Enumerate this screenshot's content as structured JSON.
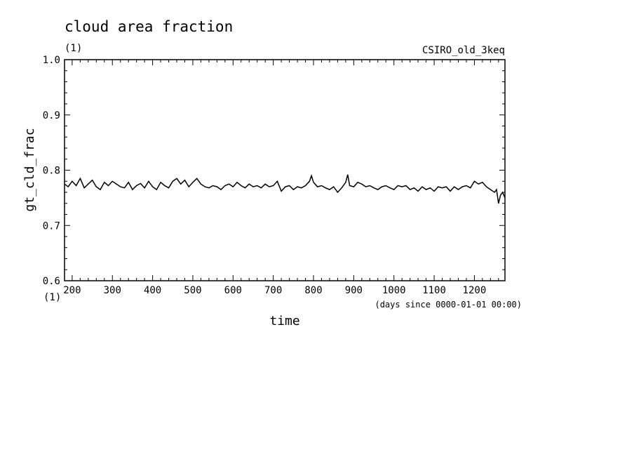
{
  "chart_data": {
    "type": "line",
    "title": "cloud area fraction",
    "title_units": "(1)",
    "dataset_label": "CSIRO_old_3keq",
    "xlabel": "time",
    "xunits_note": "(days since 0000-01-01 00:00)",
    "ylabel": "gt_cld_frac",
    "yunits": "(1)",
    "xlim": [
      181,
      1276
    ],
    "ylim": [
      0.6,
      1.0
    ],
    "x_ticks": [
      200,
      300,
      400,
      500,
      600,
      700,
      800,
      900,
      1000,
      1100,
      1200
    ],
    "y_ticks": [
      0.6,
      0.7,
      0.8,
      0.9,
      1.0
    ],
    "y_tick_labels": [
      "0.6",
      "0.7",
      "0.8",
      "0.9",
      "1.0"
    ],
    "grid": false,
    "line_color": "#000000",
    "series": [
      {
        "x": [
          181,
          190,
          200,
          210,
          220,
          230,
          240,
          250,
          260,
          270,
          280,
          290,
          300,
          310,
          320,
          330,
          340,
          350,
          360,
          370,
          380,
          390,
          400,
          410,
          420,
          430,
          440,
          450,
          460,
          470,
          480,
          490,
          500,
          510,
          520,
          530,
          540,
          550,
          560,
          570,
          580,
          590,
          600,
          610,
          620,
          630,
          640,
          650,
          660,
          670,
          680,
          690,
          700,
          710,
          720,
          730,
          740,
          750,
          760,
          770,
          780,
          790,
          795,
          800,
          810,
          820,
          830,
          840,
          850,
          860,
          870,
          880,
          885,
          890,
          900,
          910,
          920,
          930,
          940,
          950,
          960,
          970,
          980,
          990,
          1000,
          1010,
          1020,
          1030,
          1040,
          1050,
          1060,
          1070,
          1080,
          1090,
          1100,
          1110,
          1120,
          1130,
          1140,
          1150,
          1160,
          1170,
          1180,
          1190,
          1200,
          1210,
          1220,
          1230,
          1240,
          1250,
          1255,
          1260,
          1265,
          1270,
          1276
        ],
        "y": [
          0.775,
          0.77,
          0.78,
          0.772,
          0.785,
          0.768,
          0.775,
          0.782,
          0.77,
          0.765,
          0.778,
          0.772,
          0.78,
          0.775,
          0.77,
          0.768,
          0.778,
          0.765,
          0.772,
          0.776,
          0.768,
          0.78,
          0.77,
          0.765,
          0.778,
          0.772,
          0.768,
          0.78,
          0.785,
          0.775,
          0.782,
          0.77,
          0.778,
          0.785,
          0.775,
          0.77,
          0.768,
          0.772,
          0.77,
          0.765,
          0.772,
          0.775,
          0.77,
          0.778,
          0.772,
          0.768,
          0.775,
          0.77,
          0.772,
          0.768,
          0.775,
          0.77,
          0.772,
          0.78,
          0.762,
          0.77,
          0.772,
          0.765,
          0.77,
          0.768,
          0.772,
          0.78,
          0.79,
          0.778,
          0.77,
          0.772,
          0.768,
          0.765,
          0.77,
          0.76,
          0.768,
          0.778,
          0.792,
          0.772,
          0.77,
          0.778,
          0.775,
          0.77,
          0.772,
          0.768,
          0.765,
          0.77,
          0.772,
          0.768,
          0.765,
          0.772,
          0.77,
          0.772,
          0.765,
          0.768,
          0.762,
          0.77,
          0.765,
          0.768,
          0.762,
          0.77,
          0.768,
          0.77,
          0.762,
          0.77,
          0.765,
          0.77,
          0.772,
          0.768,
          0.78,
          0.775,
          0.778,
          0.77,
          0.765,
          0.76,
          0.765,
          0.74,
          0.755,
          0.76,
          0.75
        ]
      }
    ]
  }
}
